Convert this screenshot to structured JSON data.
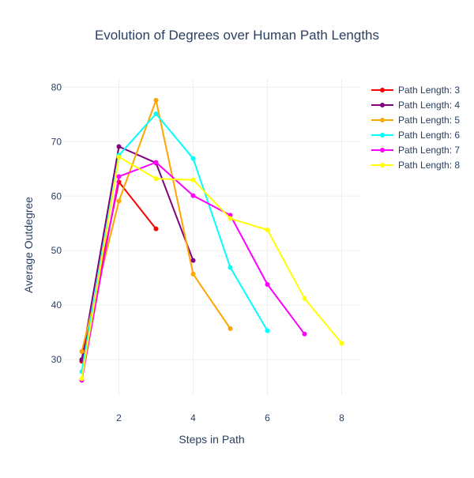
{
  "chart_data": {
    "type": "line",
    "title": "Evolution of Degrees over Human Path Lengths",
    "xlabel": "Steps in Path",
    "ylabel": "Average Outdegree",
    "xlim": [
      0.5,
      8.5
    ],
    "ylim": [
      23.5,
      81.5
    ],
    "xticks": [
      2,
      4,
      6,
      8
    ],
    "yticks": [
      30,
      40,
      50,
      60,
      70,
      80
    ],
    "grid": true,
    "legend_position": "top-right",
    "series": [
      {
        "name": "Path Length: 3",
        "color": "#ff0000",
        "x": [
          1,
          2,
          3
        ],
        "values": [
          29.7,
          62.6,
          54.0
        ]
      },
      {
        "name": "Path Length: 4",
        "color": "#800080",
        "x": [
          1,
          2,
          3,
          4
        ],
        "values": [
          30.0,
          69.1,
          66.1,
          48.2
        ]
      },
      {
        "name": "Path Length: 5",
        "color": "#ffa500",
        "x": [
          1,
          2,
          3,
          4,
          5
        ],
        "values": [
          31.5,
          59.1,
          77.6,
          45.7,
          35.7
        ]
      },
      {
        "name": "Path Length: 6",
        "color": "#00ffff",
        "x": [
          1,
          2,
          3,
          4,
          5,
          6
        ],
        "values": [
          27.8,
          67.5,
          75.1,
          66.9,
          46.9,
          35.3
        ]
      },
      {
        "name": "Path Length: 7",
        "color": "#ff00ff",
        "x": [
          1,
          2,
          3,
          4,
          5,
          6,
          7
        ],
        "values": [
          26.2,
          63.6,
          66.2,
          60.1,
          56.5,
          43.8,
          34.7
        ]
      },
      {
        "name": "Path Length: 8",
        "color": "#ffff00",
        "x": [
          1,
          2,
          3,
          4,
          5,
          6,
          7,
          8
        ],
        "values": [
          26.5,
          67.2,
          63.2,
          63.0,
          55.9,
          53.8,
          41.2,
          33.0
        ]
      }
    ]
  }
}
